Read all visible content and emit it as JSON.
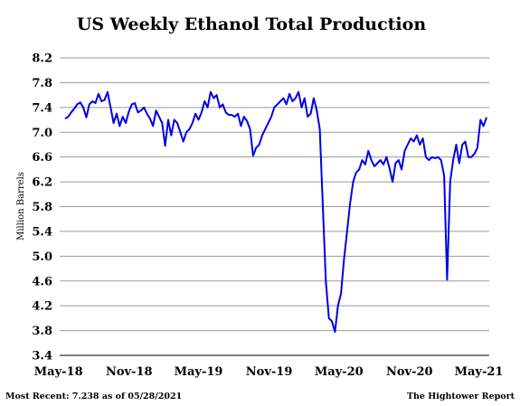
{
  "chart_data": {
    "type": "line",
    "title": "US Weekly Ethanol Total Production",
    "ylabel": "Million Barrels",
    "xlabel": "",
    "ylim": [
      3.4,
      8.2
    ],
    "yticks": [
      "8.2",
      "7.8",
      "7.4",
      "7.0",
      "6.6",
      "6.2",
      "5.8",
      "5.4",
      "5.0",
      "4.6",
      "4.2",
      "3.8",
      "3.4"
    ],
    "xticks": [
      "May-18",
      "Nov-18",
      "May-19",
      "Nov-19",
      "May-20",
      "Nov-20",
      "May-21"
    ],
    "grid": "horizontal",
    "series_color": "#0000e6",
    "footer_left": "Most Recent: 7.238 as of 05/28/2021",
    "footer_right": "The Hightower Report",
    "x_start": "2018-05-04",
    "x_end": "2021-05-28",
    "series": [
      {
        "values": [
          7.22,
          7.25,
          7.32,
          7.38,
          7.45,
          7.48,
          7.4,
          7.24,
          7.45,
          7.5,
          7.47,
          7.62,
          7.5,
          7.52,
          7.65,
          7.4,
          7.15,
          7.3,
          7.1,
          7.25,
          7.15,
          7.33,
          7.45,
          7.47,
          7.32,
          7.35,
          7.4,
          7.3,
          7.22,
          7.1,
          7.35,
          7.25,
          7.15,
          6.78,
          7.2,
          6.95,
          7.2,
          7.15,
          7.0,
          6.85,
          7.0,
          7.05,
          7.15,
          7.3,
          7.2,
          7.32,
          7.5,
          7.4,
          7.65,
          7.55,
          7.6,
          7.4,
          7.45,
          7.32,
          7.28,
          7.28,
          7.25,
          7.3,
          7.1,
          7.25,
          7.18,
          7.05,
          6.62,
          6.75,
          6.8,
          6.95,
          7.05,
          7.15,
          7.25,
          7.4,
          7.45,
          7.5,
          7.55,
          7.45,
          7.62,
          7.5,
          7.55,
          7.65,
          7.4,
          7.55,
          7.25,
          7.3,
          7.55,
          7.35,
          7.05,
          5.8,
          4.6,
          4.0,
          3.95,
          3.78,
          4.2,
          4.4,
          4.95,
          5.4,
          5.85,
          6.2,
          6.35,
          6.4,
          6.55,
          6.48,
          6.7,
          6.55,
          6.45,
          6.5,
          6.55,
          6.48,
          6.6,
          6.42,
          6.2,
          6.5,
          6.55,
          6.4,
          6.7,
          6.8,
          6.9,
          6.85,
          6.95,
          6.8,
          6.9,
          6.6,
          6.55,
          6.6,
          6.58,
          6.6,
          6.55,
          6.3,
          4.62,
          6.2,
          6.55,
          6.8,
          6.5,
          6.8,
          6.85,
          6.6,
          6.6,
          6.65,
          6.75,
          7.2,
          7.1,
          7.24
        ]
      }
    ]
  }
}
